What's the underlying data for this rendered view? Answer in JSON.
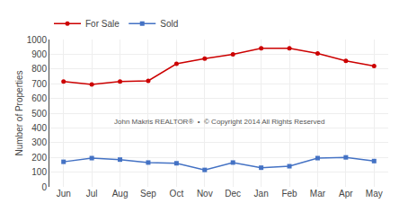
{
  "chart_data": {
    "type": "line",
    "categories": [
      "Jun",
      "Jul",
      "Aug",
      "Sep",
      "Oct",
      "Nov",
      "Dec",
      "Jan",
      "Feb",
      "Mar",
      "Apr",
      "May"
    ],
    "series": [
      {
        "name": "For Sale",
        "color": "#cc0000",
        "marker": "circle",
        "values": [
          715,
          695,
          715,
          720,
          835,
          870,
          900,
          940,
          940,
          905,
          855,
          820
        ]
      },
      {
        "name": "Sold",
        "color": "#4472c4",
        "marker": "square",
        "values": [
          170,
          195,
          185,
          165,
          160,
          115,
          165,
          130,
          140,
          195,
          200,
          175
        ]
      }
    ],
    "y_label": "Number of Properties",
    "ylim": [
      0,
      1000
    ],
    "yticks": [
      0,
      100,
      200,
      300,
      400,
      500,
      600,
      700,
      800,
      900,
      1000
    ],
    "annotations": [
      "John Makris REALTOR®  •  © Copyright 2014 All Rights Reserved"
    ],
    "grid": true,
    "legend": "upper left"
  }
}
